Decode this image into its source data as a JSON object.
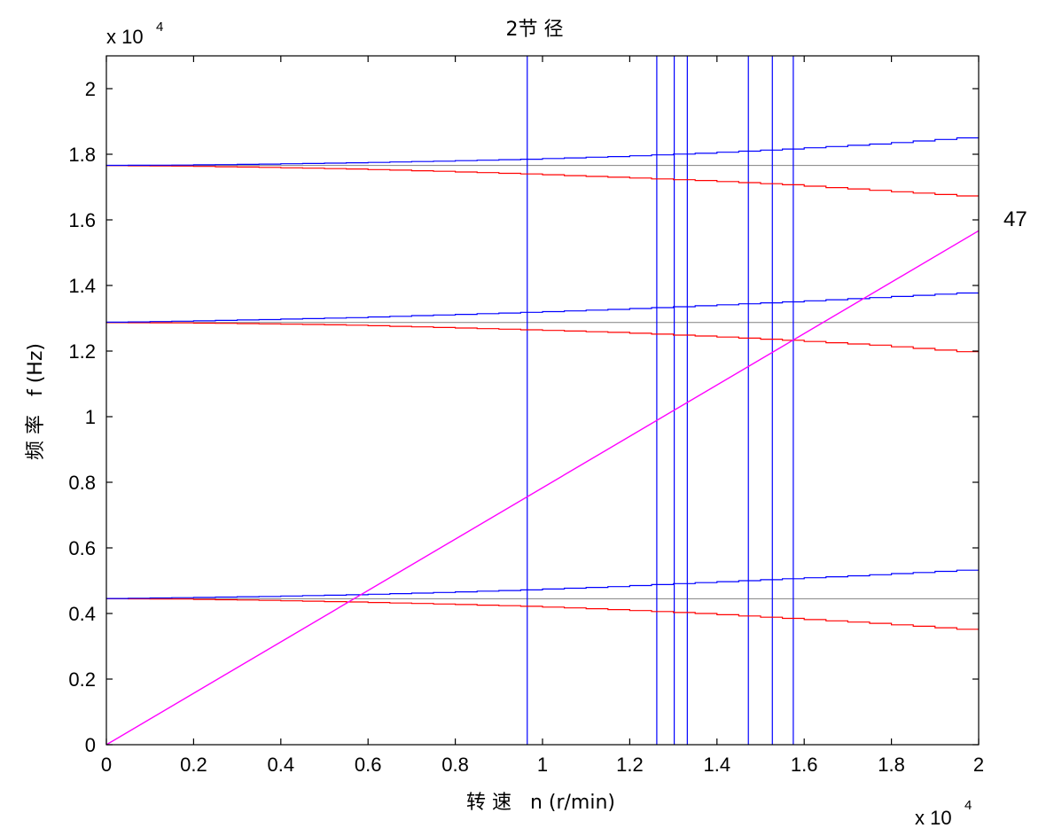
{
  "chart_data": {
    "type": "line",
    "title": "2节 径",
    "xlabel": "转 速   n (r/min)",
    "ylabel": "频 率   f (Hz)",
    "x_multiplier": "x 10",
    "y_multiplier": "x 10",
    "exponent": "4",
    "xlim": [
      0,
      20000
    ],
    "ylim": [
      0,
      21000
    ],
    "xticks": [
      0,
      2000,
      4000,
      6000,
      8000,
      10000,
      12000,
      14000,
      16000,
      18000,
      20000
    ],
    "xtick_labels": [
      "0",
      "0.2",
      "0.4",
      "0.6",
      "0.8",
      "1",
      "1.2",
      "1.4",
      "1.6",
      "1.8",
      "2"
    ],
    "yticks": [
      0,
      2000,
      4000,
      6000,
      8000,
      10000,
      12000,
      14000,
      16000,
      18000,
      20000
    ],
    "ytick_labels": [
      "0",
      "0.2",
      "0.4",
      "0.6",
      "0.8",
      "1",
      "1.2",
      "1.4",
      "1.6",
      "1.8",
      "2"
    ],
    "excitation_line": {
      "label": "47",
      "x": [
        0,
        20000
      ],
      "y": [
        0,
        15667
      ],
      "color": "#ff00ff"
    },
    "static_frequencies": {
      "values": [
        4450,
        12870,
        17660
      ],
      "color": "#808080"
    },
    "forward_whirl": {
      "color": "#0000ff",
      "x": [
        0,
        2000,
        4000,
        6000,
        8000,
        10000,
        12000,
        14000,
        16000,
        18000,
        20000
      ],
      "modes": [
        [
          4450,
          4480,
          4520,
          4570,
          4640,
          4720,
          4820,
          4940,
          5060,
          5180,
          5320
        ],
        [
          12870,
          12910,
          12960,
          13020,
          13100,
          13180,
          13270,
          13380,
          13500,
          13630,
          13770
        ],
        [
          17660,
          17670,
          17700,
          17740,
          17790,
          17850,
          17930,
          18030,
          18160,
          18310,
          18500
        ]
      ]
    },
    "backward_whirl": {
      "color": "#ff0000",
      "x": [
        0,
        2000,
        4000,
        6000,
        8000,
        10000,
        12000,
        14000,
        16000,
        18000,
        20000
      ],
      "modes": [
        [
          4450,
          4440,
          4400,
          4350,
          4290,
          4220,
          4120,
          4000,
          3850,
          3700,
          3520
        ],
        [
          12870,
          12860,
          12830,
          12790,
          12720,
          12650,
          12570,
          12460,
          12330,
          12180,
          11980
        ],
        [
          17660,
          17640,
          17600,
          17550,
          17480,
          17400,
          17300,
          17200,
          17070,
          16900,
          16730
        ]
      ]
    },
    "vertical_lines": {
      "color": "#0000ff",
      "x": [
        9650,
        12620,
        13020,
        13320,
        14720,
        15270,
        15750
      ]
    }
  }
}
